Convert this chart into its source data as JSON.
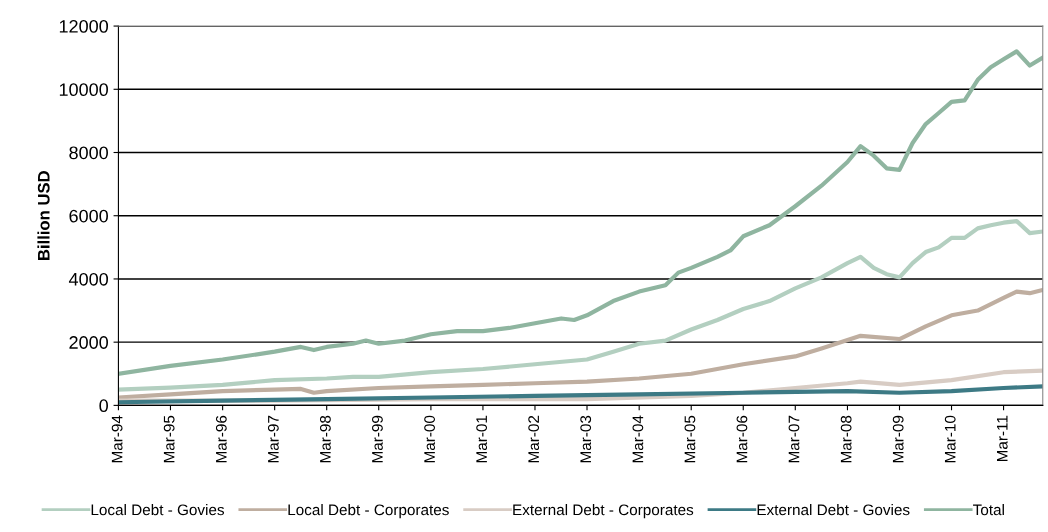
{
  "chart_data": {
    "type": "line",
    "ylabel": "Billion USD",
    "ylim": [
      0,
      12000
    ],
    "yticks": [
      0,
      2000,
      4000,
      6000,
      8000,
      10000,
      12000
    ],
    "xlim": [
      "1994-03",
      "2011-12"
    ],
    "xticks": [
      {
        "value": "1994-03",
        "label": "Mar-94"
      },
      {
        "value": "1995-03",
        "label": "Mar-95"
      },
      {
        "value": "1996-03",
        "label": "Mar-96"
      },
      {
        "value": "1997-03",
        "label": "Mar-97"
      },
      {
        "value": "1998-03",
        "label": "Mar-98"
      },
      {
        "value": "1999-03",
        "label": "Mar-99"
      },
      {
        "value": "2000-03",
        "label": "Mar-00"
      },
      {
        "value": "2001-03",
        "label": "Mar-01"
      },
      {
        "value": "2002-03",
        "label": "Mar-02"
      },
      {
        "value": "2003-03",
        "label": "Mar-03"
      },
      {
        "value": "2004-03",
        "label": "Mar-04"
      },
      {
        "value": "2005-03",
        "label": "Mar-05"
      },
      {
        "value": "2006-03",
        "label": "Mar-06"
      },
      {
        "value": "2007-03",
        "label": "Mar-07"
      },
      {
        "value": "2008-03",
        "label": "Mar-08"
      },
      {
        "value": "2009-03",
        "label": "Mar-09"
      },
      {
        "value": "2010-03",
        "label": "Mar-10"
      },
      {
        "value": "2011-03",
        "label": "Mar-11"
      }
    ],
    "grid": "y",
    "legend": "bottom",
    "marker": "none",
    "line_style": "solid",
    "series": [
      {
        "name": "Local Debt - Govies",
        "color": "#b3cfc0",
        "x": [
          "1994-03",
          "1995-03",
          "1996-03",
          "1997-03",
          "1998-03",
          "1998-09",
          "1999-03",
          "2000-03",
          "2001-03",
          "2002-03",
          "2003-03",
          "2003-09",
          "2004-03",
          "2004-09",
          "2005-03",
          "2005-09",
          "2006-03",
          "2006-09",
          "2007-03",
          "2007-09",
          "2008-03",
          "2008-06",
          "2008-09",
          "2008-12",
          "2009-03",
          "2009-06",
          "2009-09",
          "2009-12",
          "2010-03",
          "2010-06",
          "2010-09",
          "2010-12",
          "2011-03",
          "2011-06",
          "2011-09",
          "2011-12"
        ],
        "values": [
          500,
          560,
          650,
          800,
          850,
          900,
          900,
          1050,
          1150,
          1300,
          1450,
          1700,
          1950,
          2050,
          2400,
          2700,
          3050,
          3300,
          3700,
          4050,
          4500,
          4700,
          4350,
          4150,
          4050,
          4500,
          4850,
          5000,
          5300,
          5300,
          5600,
          5700,
          5780,
          5830,
          5450,
          5500
        ]
      },
      {
        "name": "Local Debt - Corporates",
        "color": "#bfaea0",
        "x": [
          "1994-03",
          "1995-03",
          "1996-03",
          "1997-03",
          "1997-09",
          "1997-12",
          "1998-03",
          "1999-03",
          "2000-03",
          "2001-03",
          "2002-03",
          "2003-03",
          "2004-03",
          "2005-03",
          "2006-03",
          "2007-03",
          "2007-09",
          "2008-06",
          "2009-03",
          "2009-09",
          "2010-03",
          "2010-09",
          "2011-03",
          "2011-06",
          "2011-09",
          "2011-12"
        ],
        "values": [
          250,
          350,
          450,
          500,
          520,
          400,
          450,
          550,
          600,
          650,
          700,
          750,
          850,
          1000,
          1300,
          1550,
          1800,
          2200,
          2100,
          2500,
          2850,
          3000,
          3400,
          3600,
          3550,
          3650
        ]
      },
      {
        "name": "External Debt - Corporates",
        "color": "#d8ccc4",
        "x": [
          "1994-03",
          "1997-03",
          "2000-03",
          "2003-03",
          "2005-03",
          "2006-03",
          "2007-03",
          "2008-03",
          "2008-06",
          "2009-03",
          "2010-03",
          "2011-03",
          "2011-12"
        ],
        "values": [
          150,
          150,
          200,
          200,
          300,
          400,
          550,
          700,
          750,
          650,
          800,
          1050,
          1100
        ]
      },
      {
        "name": "External Debt - Govies",
        "color": "#3d7a85",
        "x": [
          "1994-03",
          "1996-03",
          "1998-03",
          "2000-03",
          "2002-03",
          "2004-03",
          "2006-03",
          "2008-03",
          "2009-03",
          "2010-03",
          "2011-03",
          "2011-12"
        ],
        "values": [
          100,
          150,
          200,
          250,
          300,
          350,
          400,
          450,
          400,
          450,
          550,
          600
        ]
      },
      {
        "name": "Total",
        "color": "#8fb5a0",
        "x": [
          "1994-03",
          "1995-03",
          "1996-03",
          "1997-03",
          "1997-09",
          "1997-12",
          "1998-03",
          "1998-09",
          "1998-12",
          "1999-03",
          "1999-09",
          "2000-03",
          "2000-09",
          "2001-03",
          "2001-09",
          "2002-03",
          "2002-09",
          "2002-12",
          "2003-03",
          "2003-09",
          "2004-03",
          "2004-09",
          "2004-12",
          "2005-03",
          "2005-09",
          "2005-12",
          "2006-03",
          "2006-09",
          "2007-03",
          "2007-09",
          "2008-03",
          "2008-06",
          "2008-09",
          "2008-12",
          "2009-03",
          "2009-06",
          "2009-09",
          "2009-12",
          "2010-03",
          "2010-06",
          "2010-09",
          "2010-12",
          "2011-03",
          "2011-06",
          "2011-09",
          "2011-12"
        ],
        "values": [
          1000,
          1250,
          1450,
          1700,
          1850,
          1750,
          1850,
          1950,
          2050,
          1950,
          2050,
          2250,
          2350,
          2350,
          2450,
          2600,
          2750,
          2700,
          2850,
          3300,
          3600,
          3800,
          4200,
          4350,
          4700,
          4900,
          5350,
          5700,
          6300,
          6950,
          7700,
          8200,
          7900,
          7500,
          7450,
          8300,
          8900,
          9250,
          9600,
          9650,
          10300,
          10700,
          10950,
          11200,
          10750,
          11000
        ]
      }
    ]
  }
}
